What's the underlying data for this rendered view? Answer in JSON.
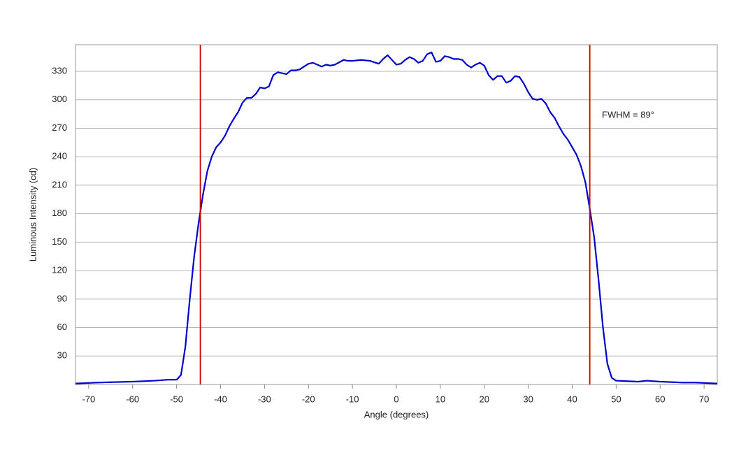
{
  "chart_data": {
    "type": "line",
    "xlabel": "Angle (degrees)",
    "ylabel": "Luminous Intensity (cd)",
    "annotation": "FWHM = 89°",
    "x": [
      -73,
      -68,
      -60,
      -55,
      -52,
      -50,
      -49,
      -48,
      -47,
      -46,
      -45,
      -44,
      -43,
      -42,
      -41,
      -40,
      -39,
      -38,
      -37,
      -36,
      -35,
      -34,
      -33,
      -32,
      -31,
      -30,
      -29,
      -28,
      -27,
      -26,
      -25,
      -24,
      -23,
      -22,
      -20,
      -19,
      -18,
      -17,
      -16,
      -15,
      -14,
      -12,
      -11,
      -10,
      -8,
      -6,
      -4,
      -3,
      -2,
      -1,
      0,
      1,
      2,
      3,
      4,
      5,
      6,
      7,
      8,
      9,
      10,
      11,
      12,
      13,
      14,
      15,
      16,
      17,
      18,
      19,
      20,
      21,
      22,
      23,
      24,
      25,
      26,
      27,
      28,
      29,
      30,
      31,
      32,
      33,
      34,
      35,
      36,
      37,
      38,
      39,
      40,
      41,
      42,
      43,
      44,
      45,
      46,
      47,
      48,
      49,
      50,
      55,
      57,
      60,
      65,
      68,
      73
    ],
    "series": [
      {
        "color": "#0000cc",
        "values": [
          1,
          2,
          3,
          4,
          5,
          5,
          10,
          40,
          90,
          135,
          170,
          200,
          225,
          240,
          250,
          255,
          262,
          272,
          280,
          287,
          297,
          302,
          302,
          306,
          313,
          312,
          314,
          326,
          329,
          328,
          327,
          331,
          331,
          332,
          338,
          339,
          337,
          335,
          337,
          336,
          337,
          342,
          341,
          341,
          342,
          341,
          338,
          343,
          347,
          342,
          337,
          338,
          342,
          345,
          343,
          339,
          341,
          348,
          350,
          340,
          341,
          346,
          345,
          343,
          343,
          342,
          337,
          334,
          337,
          339,
          336,
          326,
          321,
          325,
          325,
          318,
          320,
          325,
          324,
          317,
          308,
          301,
          300,
          301,
          296,
          287,
          281,
          272,
          264,
          258,
          250,
          242,
          230,
          213,
          185,
          155,
          110,
          60,
          22,
          7,
          4,
          3,
          4,
          3,
          2,
          2,
          1
        ]
      }
    ],
    "vlines": [
      -44.6,
      44.0
    ],
    "vline_color": "#cc0000",
    "xlim": [
      -73,
      73
    ],
    "xticks": [
      -70,
      -60,
      -50,
      -40,
      -30,
      -20,
      -10,
      0,
      10,
      20,
      30,
      40,
      50,
      60,
      70
    ],
    "ylim": [
      0,
      358
    ],
    "yticks": [
      30,
      60,
      90,
      120,
      150,
      180,
      210,
      240,
      270,
      300,
      330
    ],
    "grid": true
  }
}
